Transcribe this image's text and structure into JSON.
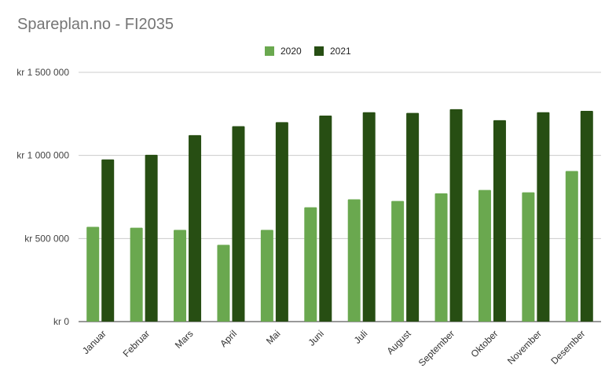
{
  "chart_data": {
    "type": "bar",
    "title": "Spareplan.no - FI2035",
    "xlabel": "",
    "ylabel": "",
    "categories": [
      "Januar",
      "Februar",
      "Mars",
      "April",
      "Mai",
      "Juni",
      "Juli",
      "August",
      "September",
      "Oktober",
      "November",
      "Desember"
    ],
    "series": [
      {
        "name": "2020",
        "color": "#6aa84f",
        "values": [
          570000,
          565000,
          552000,
          462000,
          552000,
          688000,
          736000,
          726000,
          772000,
          792000,
          778000,
          906000
        ]
      },
      {
        "name": "2021",
        "color": "#274e13",
        "values": [
          976000,
          1004000,
          1122000,
          1176000,
          1200000,
          1240000,
          1260000,
          1256000,
          1278000,
          1212000,
          1260000,
          1268000
        ]
      }
    ],
    "ylim": [
      0,
      1500000
    ],
    "y_ticks": [
      {
        "value": 0,
        "label": "kr    0"
      },
      {
        "value": 500000,
        "label": "kr  500 000"
      },
      {
        "value": 1000000,
        "label": "kr 1 000 000"
      },
      {
        "value": 1500000,
        "label": "kr 1 500 000"
      }
    ],
    "grid": true,
    "legend_position": "top-center"
  }
}
